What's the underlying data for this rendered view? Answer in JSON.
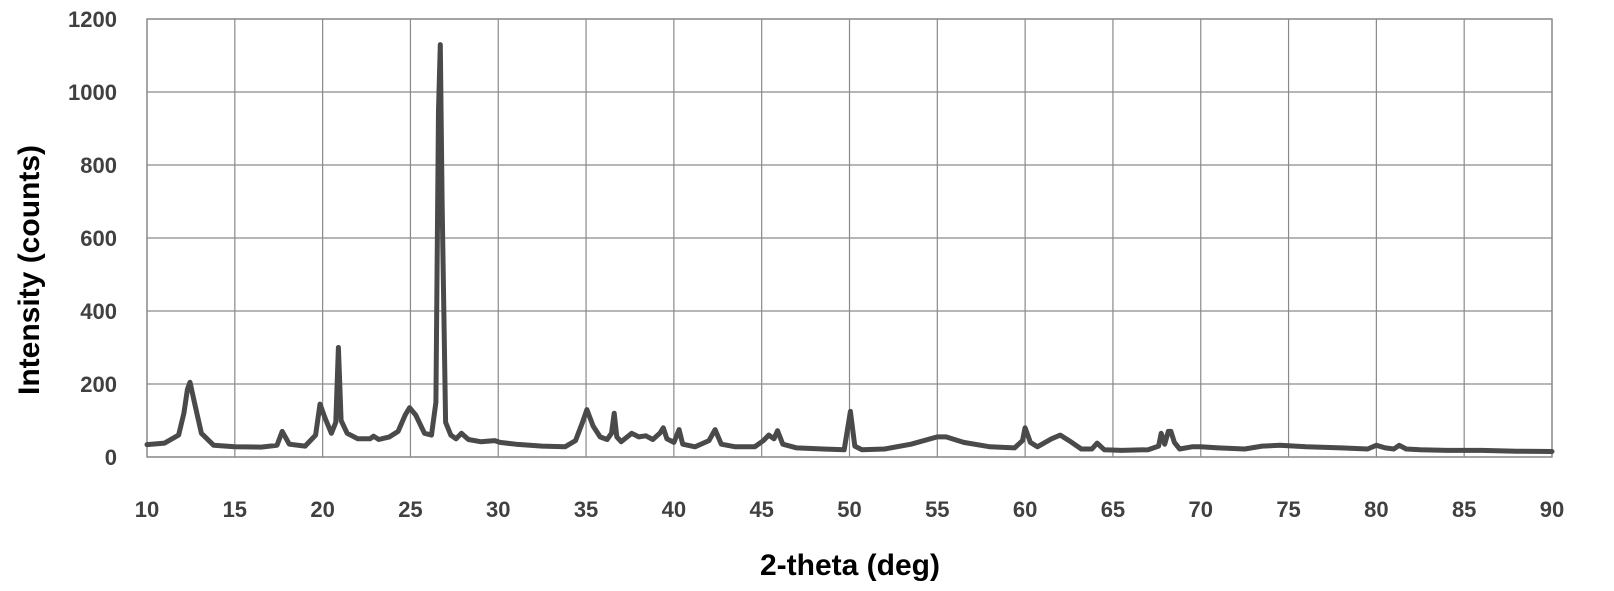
{
  "chart_data": {
    "type": "line",
    "title": "",
    "xlabel": "2-theta (deg)",
    "ylabel": "Intensity (counts)",
    "xlim": [
      10,
      90
    ],
    "ylim": [
      0,
      1200
    ],
    "x_ticks": [
      10,
      15,
      20,
      25,
      30,
      35,
      40,
      45,
      50,
      55,
      60,
      65,
      70,
      75,
      80,
      85,
      90
    ],
    "y_ticks": [
      0,
      200,
      400,
      600,
      800,
      1000,
      1200
    ],
    "grid": true,
    "legend": "none",
    "line_color": "#4a4a4a",
    "series": [
      {
        "x": [
          10,
          11,
          11.8,
          12.1,
          12.3,
          12.45,
          12.7,
          13.1,
          13.8,
          15,
          16.5,
          17.4,
          17.7,
          18.1,
          19,
          19.6,
          19.85,
          20.15,
          20.5,
          20.75,
          20.9,
          21.05,
          21.4,
          22,
          22.7,
          22.9,
          23.2,
          23.8,
          24.3,
          24.7,
          24.95,
          25.3,
          25.8,
          26.2,
          26.45,
          26.6,
          26.7,
          26.8,
          27.0,
          27.3,
          27.6,
          27.9,
          28.3,
          29,
          29.8,
          30.1,
          31,
          32.5,
          33.8,
          34.4,
          34.8,
          35.05,
          35.4,
          35.8,
          36.2,
          36.45,
          36.6,
          36.75,
          37.0,
          37.6,
          38.0,
          38.4,
          38.8,
          39.2,
          39.4,
          39.6,
          40.0,
          40.3,
          40.5,
          41.2,
          42.0,
          42.35,
          42.7,
          43.5,
          44.6,
          45.1,
          45.4,
          45.7,
          45.9,
          46.2,
          47,
          48.5,
          49.7,
          50.05,
          50.3,
          50.7,
          52,
          53.5,
          55.0,
          55.5,
          56.5,
          58,
          59.4,
          59.85,
          60.0,
          60.3,
          60.7,
          61.5,
          62.0,
          62.5,
          63.2,
          63.8,
          64.1,
          64.5,
          65.5,
          67,
          67.6,
          67.75,
          67.95,
          68.15,
          68.3,
          68.5,
          68.8,
          69.5,
          70,
          71,
          72.5,
          73.5,
          74.5,
          76,
          78,
          79.5,
          80.0,
          80.5,
          81.0,
          81.3,
          81.7,
          82.5,
          84,
          86,
          88,
          90
        ],
        "y": [
          34,
          38,
          60,
          120,
          185,
          205,
          150,
          65,
          32,
          28,
          27,
          32,
          70,
          35,
          30,
          60,
          145,
          105,
          65,
          95,
          300,
          100,
          65,
          50,
          50,
          57,
          48,
          55,
          70,
          115,
          135,
          115,
          65,
          60,
          150,
          950,
          1130,
          700,
          95,
          60,
          50,
          65,
          48,
          42,
          45,
          40,
          35,
          30,
          28,
          45,
          95,
          130,
          85,
          55,
          48,
          65,
          120,
          55,
          42,
          65,
          55,
          58,
          48,
          65,
          80,
          50,
          40,
          75,
          35,
          28,
          45,
          75,
          35,
          28,
          28,
          45,
          60,
          50,
          72,
          35,
          25,
          22,
          20,
          125,
          30,
          20,
          22,
          35,
          55,
          55,
          40,
          28,
          25,
          45,
          80,
          40,
          28,
          50,
          60,
          45,
          22,
          22,
          38,
          20,
          18,
          20,
          30,
          65,
          35,
          70,
          70,
          40,
          22,
          28,
          28,
          25,
          22,
          30,
          32,
          28,
          25,
          22,
          32,
          25,
          22,
          32,
          22,
          20,
          18,
          18,
          16,
          15
        ]
      }
    ]
  }
}
